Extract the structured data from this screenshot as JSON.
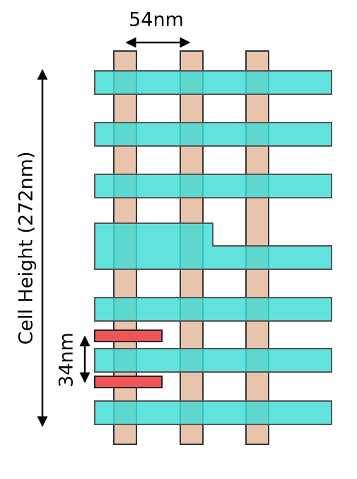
{
  "labels": {
    "pitch": "54nm",
    "cell_height": "Cell Height (272nm)",
    "spacing": "34nm"
  }
}
